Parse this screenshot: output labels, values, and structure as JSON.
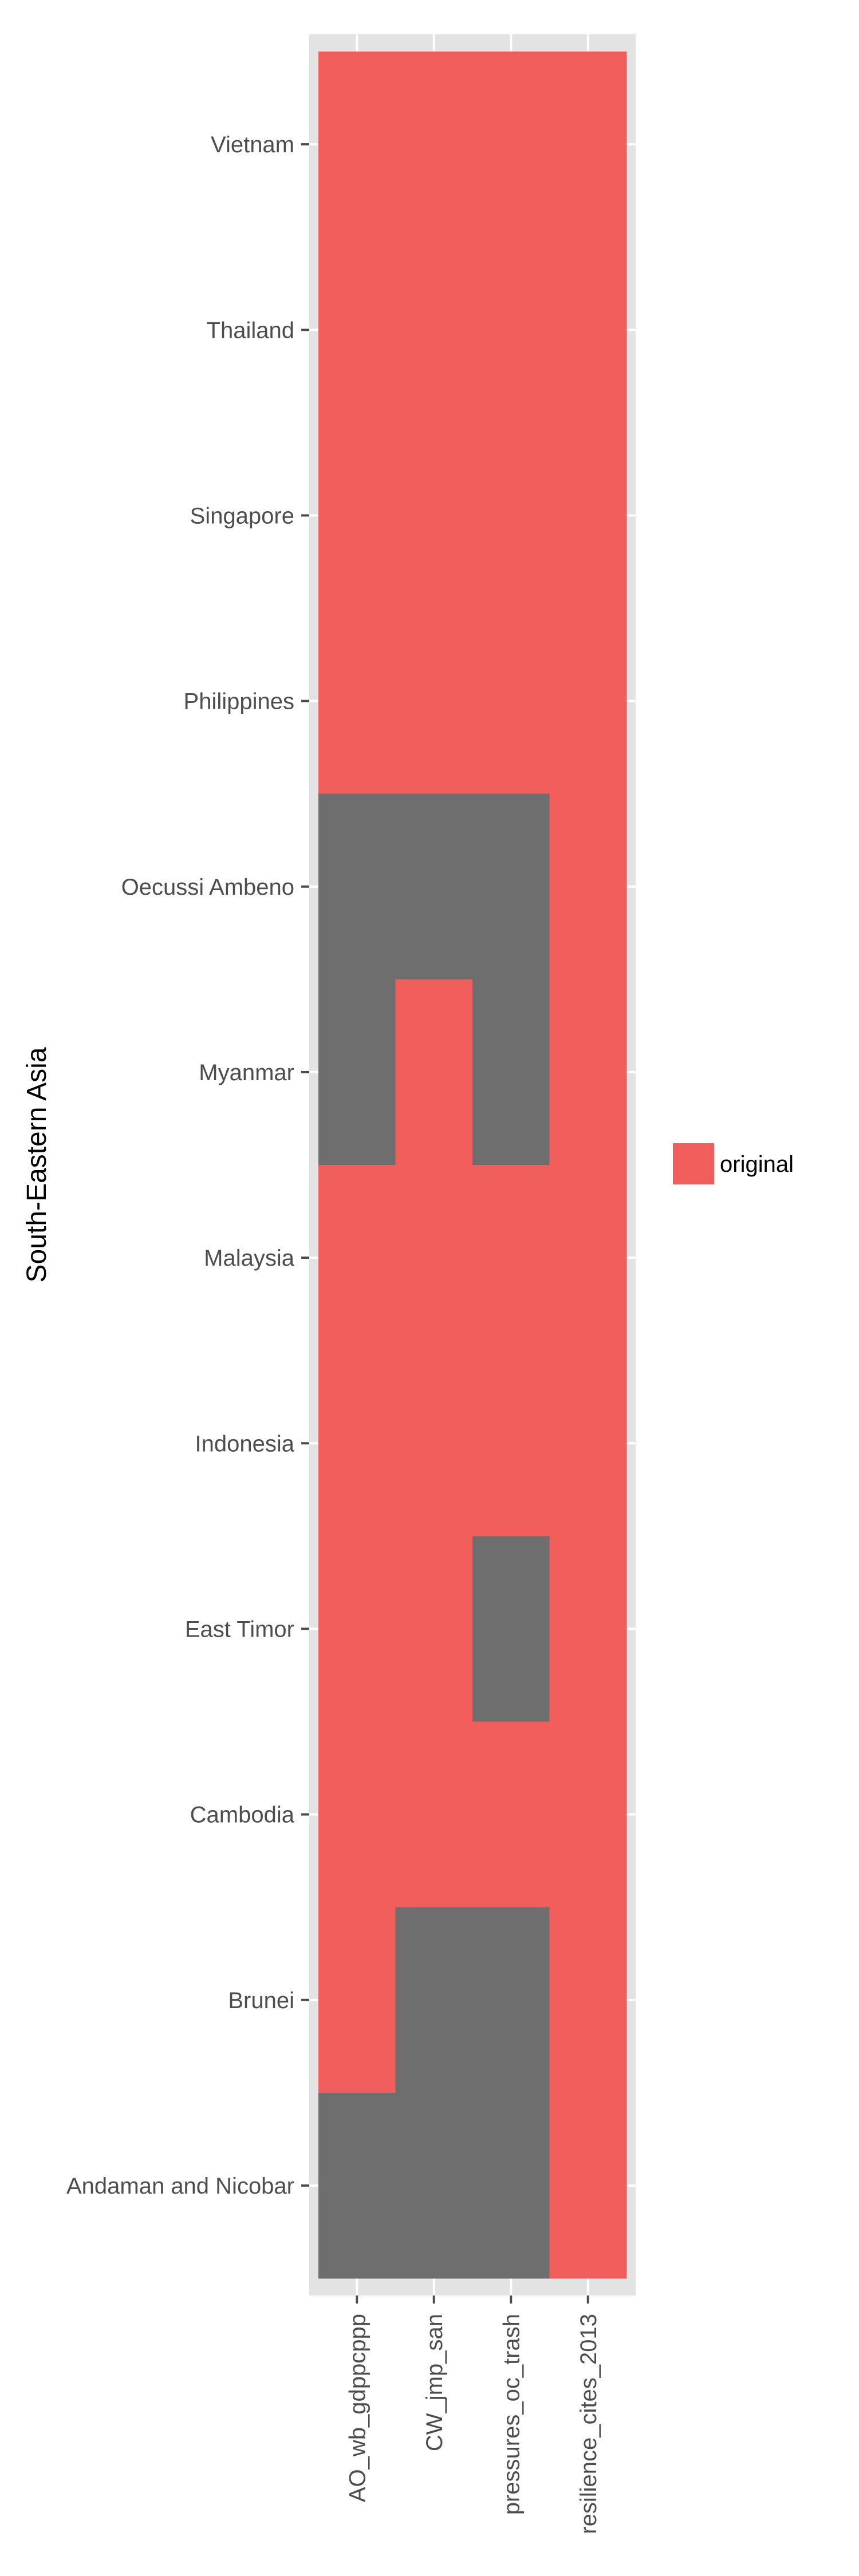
{
  "chart_data": {
    "type": "heatmap",
    "ylabel": "South-Eastern Asia",
    "xlabel": "",
    "x_categories": [
      "AO_wb_gdppcppp",
      "CW_jmp_san",
      "pressures_oc_trash",
      "resilience_cites_2013"
    ],
    "y_categories": [
      "Vietnam",
      "Thailand",
      "Singapore",
      "Philippines",
      "Oecussi Ambeno",
      "Myanmar",
      "Malaysia",
      "Indonesia",
      "East Timor",
      "Cambodia",
      "Brunei",
      "Andaman and Nicobar"
    ],
    "cells": [
      [
        "original",
        "original",
        "original",
        "original"
      ],
      [
        "original",
        "original",
        "original",
        "original"
      ],
      [
        "original",
        "original",
        "original",
        "original"
      ],
      [
        "original",
        "original",
        "original",
        "original"
      ],
      [
        null,
        null,
        null,
        "original"
      ],
      [
        null,
        "original",
        null,
        "original"
      ],
      [
        "original",
        "original",
        "original",
        "original"
      ],
      [
        "original",
        "original",
        "original",
        "original"
      ],
      [
        "original",
        "original",
        null,
        "original"
      ],
      [
        "original",
        "original",
        "original",
        "original"
      ],
      [
        "original",
        null,
        null,
        "original"
      ],
      [
        null,
        null,
        null,
        "original"
      ]
    ],
    "legend": [
      {
        "label": "original",
        "color": "#F15E5B"
      }
    ],
    "legend_position": "right",
    "missing_color": "#6E6E6E",
    "panel_background": "#E3E3E3",
    "grid": true
  }
}
